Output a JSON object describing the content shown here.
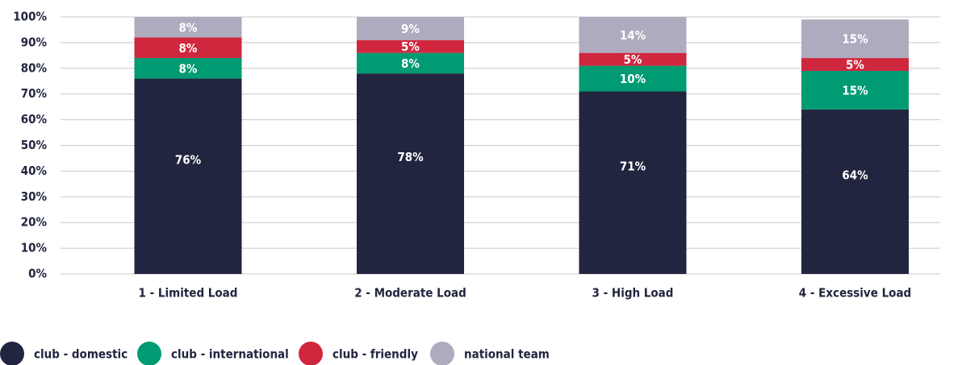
{
  "chart_data": {
    "type": "stacked_bar",
    "categories": [
      "1 - Limited Load",
      "2 - Moderate Load",
      "3 - High Load",
      "4 - Excessive Load"
    ],
    "series": [
      {
        "name": "club - domestic",
        "color": "#22253f",
        "values": [
          76,
          78,
          71,
          64
        ],
        "value_labels": [
          "76%",
          "78%",
          "71%",
          "64%"
        ]
      },
      {
        "name": "club - international",
        "color": "#009b72",
        "values": [
          8,
          8,
          10,
          15
        ],
        "value_labels": [
          "8%",
          "8%",
          "10%",
          "15%"
        ]
      },
      {
        "name": "club - friendly",
        "color": "#d0273e",
        "values": [
          8,
          5,
          5,
          5
        ],
        "value_labels": [
          "8%",
          "5%",
          "5%",
          "5%"
        ]
      },
      {
        "name": "national team",
        "color": "#aeabbf",
        "values": [
          8,
          9,
          14,
          15
        ],
        "value_labels": [
          "8%",
          "9%",
          "14%",
          "15%"
        ]
      }
    ],
    "ylim": [
      0,
      100
    ],
    "yticks": [
      {
        "value": 0,
        "label": "0%"
      },
      {
        "value": 10,
        "label": "10%"
      },
      {
        "value": 20,
        "label": "20%"
      },
      {
        "value": 30,
        "label": "30%"
      },
      {
        "value": 40,
        "label": "40%"
      },
      {
        "value": 50,
        "label": "50%"
      },
      {
        "value": 60,
        "label": "60%"
      },
      {
        "value": 70,
        "label": "70%"
      },
      {
        "value": 80,
        "label": "80%"
      },
      {
        "value": 90,
        "label": "90%"
      },
      {
        "value": 100,
        "label": "100%"
      }
    ],
    "grid": true,
    "legend": "bottom-left"
  }
}
